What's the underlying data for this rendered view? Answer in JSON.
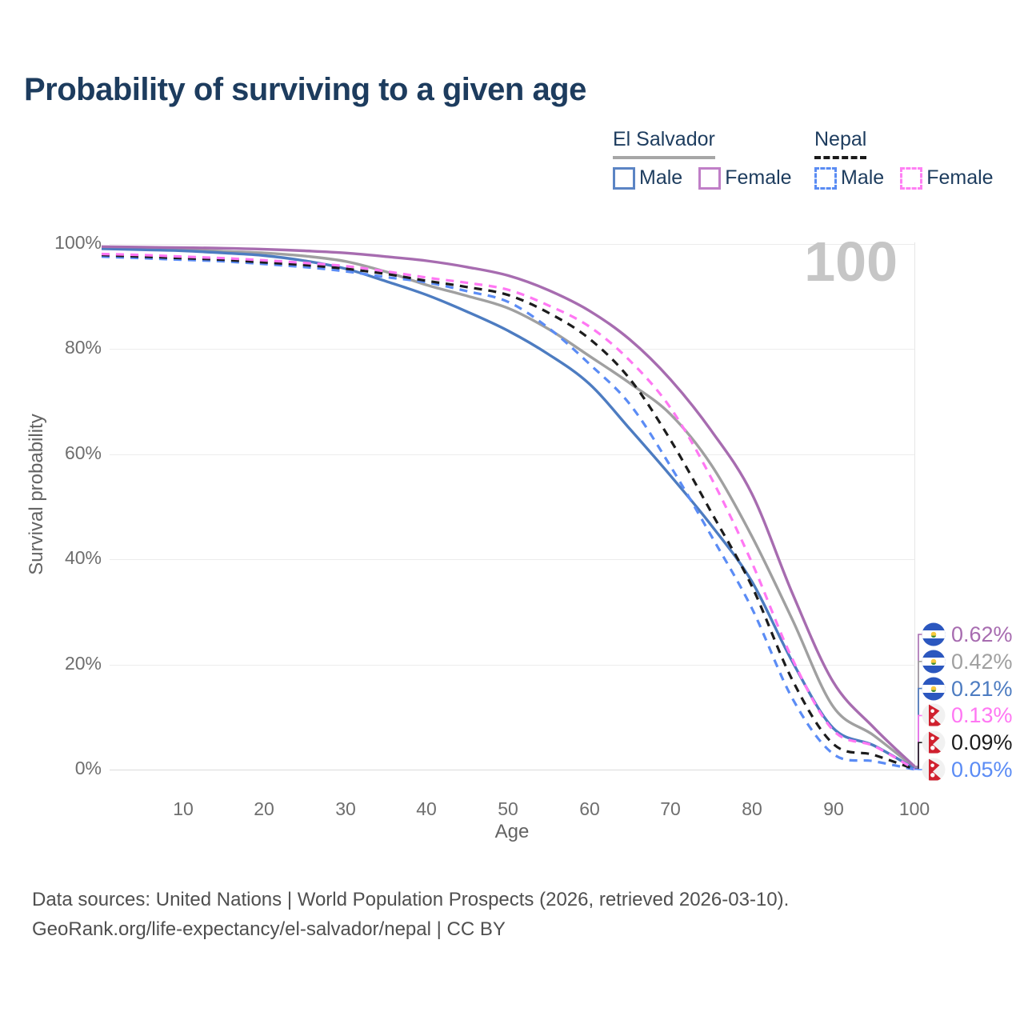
{
  "title": "Probability of surviving to a given age",
  "watermark": "100",
  "legend": {
    "groups": [
      {
        "name": "El Salvador",
        "line_style": "solid",
        "rule_color": "#a6a6a6",
        "items": [
          {
            "label": "Male",
            "color": "#5b84c4"
          },
          {
            "label": "Female",
            "color": "#c07fc7"
          }
        ]
      },
      {
        "name": "Nepal",
        "line_style": "dashed",
        "rule_color": "#1a1a1a",
        "items": [
          {
            "label": "Male",
            "color": "#5a8cf3"
          },
          {
            "label": "Female",
            "color": "#ff80f4"
          }
        ]
      }
    ]
  },
  "y_axis": {
    "title": "Survival probability",
    "ticks": [
      "100%",
      "80%",
      "60%",
      "40%",
      "20%",
      "0%"
    ]
  },
  "x_axis": {
    "title": "Age",
    "ticks": [
      "10",
      "20",
      "30",
      "40",
      "50",
      "60",
      "70",
      "80",
      "90",
      "100"
    ]
  },
  "footer": {
    "line1": "Data sources: United Nations | World Population Prospects (2026, retrieved 2026-03-10).",
    "line2": "GeoRank.org/life-expectancy/el-salvador/nepal | CC BY"
  },
  "chart_data": {
    "type": "line",
    "title": "Probability of surviving to a given age",
    "xlabel": "Age",
    "ylabel": "Survival probability",
    "xlim": [
      0,
      100
    ],
    "ylim": [
      0,
      100
    ],
    "grid": "horizontal",
    "legend_position": "top-right",
    "x": [
      0,
      5,
      10,
      15,
      20,
      25,
      30,
      35,
      40,
      45,
      50,
      55,
      60,
      65,
      70,
      75,
      80,
      85,
      90,
      95,
      100
    ],
    "series": [
      {
        "name": "El Salvador — Female",
        "flag": "el-salvador",
        "style": "solid",
        "color": "#a76cb0",
        "end_label": "0.62%",
        "values": [
          99.5,
          99.4,
          99.3,
          99.2,
          99.0,
          98.7,
          98.3,
          97.6,
          96.8,
          95.6,
          94.0,
          91.2,
          87.3,
          81.8,
          74.2,
          64.5,
          52.5,
          33.5,
          16.7,
          8.0,
          0.62
        ]
      },
      {
        "name": "El Salvador — Both sexes",
        "flag": "el-salvador",
        "style": "solid",
        "color": "#a0a0a0",
        "end_label": "0.42%",
        "values": [
          99.2,
          99.0,
          98.9,
          98.6,
          98.3,
          97.7,
          96.7,
          94.7,
          92.2,
          90.1,
          87.8,
          83.8,
          78.7,
          73.5,
          67.6,
          58.0,
          44.4,
          28.5,
          12.0,
          6.5,
          0.42
        ]
      },
      {
        "name": "El Salvador — Male",
        "flag": "el-salvador",
        "style": "solid",
        "color": "#4d7cc1",
        "end_label": "0.21%",
        "values": [
          99.1,
          98.9,
          98.7,
          98.3,
          97.8,
          96.8,
          95.3,
          92.9,
          90.3,
          87.1,
          83.5,
          79.0,
          73.4,
          64.8,
          55.9,
          46.5,
          35.8,
          20.5,
          7.9,
          4.6,
          0.21
        ]
      },
      {
        "name": "Nepal — Female",
        "flag": "nepal",
        "style": "dashed",
        "color": "#ff77f3",
        "end_label": "0.13%",
        "values": [
          98.1,
          97.9,
          97.6,
          97.3,
          96.9,
          96.4,
          95.8,
          94.8,
          93.6,
          92.6,
          91.3,
          88.3,
          84.3,
          77.8,
          68.8,
          55.5,
          39.4,
          21.0,
          7.5,
          4.5,
          0.13
        ]
      },
      {
        "name": "Nepal — Both sexes",
        "flag": "nepal",
        "style": "dashed",
        "color": "#1c1c1c",
        "end_label": "0.09%",
        "values": [
          97.9,
          97.6,
          97.3,
          97.0,
          96.5,
          96.0,
          95.3,
          94.3,
          93.0,
          91.8,
          90.3,
          86.9,
          82.0,
          74.3,
          62.7,
          49.0,
          34.9,
          17.0,
          4.9,
          2.8,
          0.09
        ]
      },
      {
        "name": "Nepal — Male",
        "flag": "nepal",
        "style": "dashed",
        "color": "#5b8cf5",
        "end_label": "0.05%",
        "values": [
          97.6,
          97.3,
          97.0,
          96.7,
          96.2,
          95.6,
          94.8,
          93.7,
          92.7,
          91.0,
          89.0,
          84.0,
          77.2,
          69.5,
          57.7,
          44.5,
          30.7,
          13.5,
          3.0,
          1.6,
          0.05
        ]
      }
    ]
  }
}
